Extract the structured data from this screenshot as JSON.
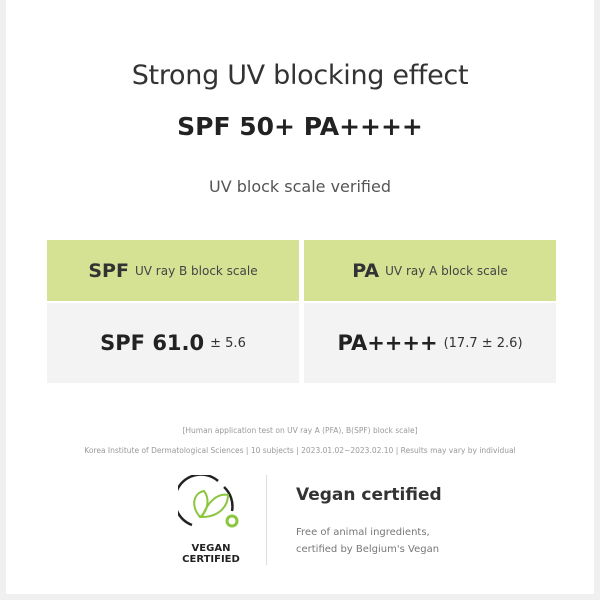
{
  "title": "Strong UV blocking effect",
  "headline": "SPF 50+ PA++++",
  "subtitle": "UV block scale verified",
  "table": {
    "spf": {
      "label": "SPF",
      "desc": "UV ray B block scale",
      "value": "SPF 61.0",
      "margin": "± 5.6"
    },
    "pa": {
      "label": "PA",
      "desc": "UV ray A block scale",
      "value": "PA++++",
      "margin": "(17.7 ± 2.6)"
    },
    "colors": {
      "header": "#d5e294",
      "row": "#f3f3f3"
    }
  },
  "footnotes": [
    "[Human application test on UV ray A (PFA), B(SPF) block scale]",
    "Korea Institute of Dermatological Sciences | 10 subjects | 2023.01.02~2023.02.10 | Results may vary by individual"
  ],
  "vegan": {
    "logo_text": [
      "VEGAN",
      "CERTIFIED"
    ],
    "title": "Vegan certified",
    "desc": [
      "Free of animal ingredients,",
      "certified by Belgium's Vegan"
    ],
    "accent": "#8cc63f"
  }
}
